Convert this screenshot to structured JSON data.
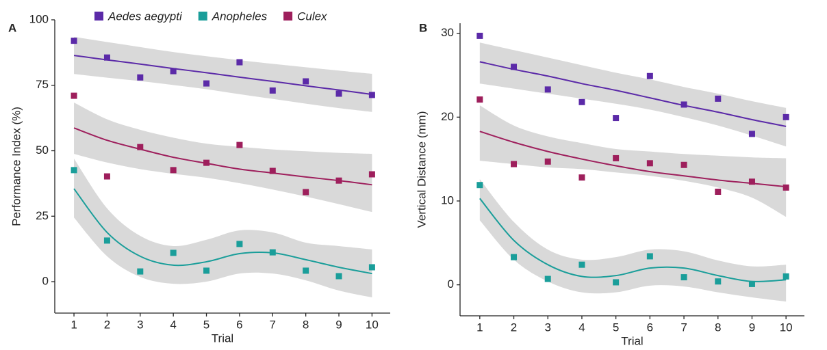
{
  "chart_data": [
    {
      "type": "scatter",
      "panel": "A",
      "xlabel": "Trial",
      "ylabel": "Performance Index (%)",
      "x": [
        1,
        2,
        3,
        4,
        5,
        6,
        7,
        8,
        9,
        10
      ],
      "xlim": [
        0.42,
        10.55
      ],
      "xticks": [
        1,
        2,
        3,
        4,
        5,
        6,
        7,
        8,
        9,
        10
      ],
      "ylim": [
        -12,
        100
      ],
      "yticks": [
        0,
        25,
        50,
        75,
        100
      ],
      "series": [
        {
          "name": "Aedes aegypti",
          "color": "#5b2aa8",
          "values": [
            92,
            85.6,
            78,
            80.4,
            75.7,
            83.8,
            73,
            76.5,
            71.8,
            71.3
          ],
          "fit": [
            86.4,
            84.7,
            83.1,
            81.4,
            79.8,
            78.1,
            76.5,
            74.8,
            73.2,
            71.5
          ],
          "band_upper": [
            93.5,
            91.5,
            89.6,
            87.7,
            86.1,
            84.6,
            83.2,
            81.9,
            80.6,
            79.4
          ],
          "band_lower": [
            79.3,
            77.9,
            76.6,
            75.1,
            73.5,
            71.6,
            69.8,
            68,
            66.3,
            64.8
          ]
        },
        {
          "name": "Anopheles",
          "color": "#1a9e9a",
          "values": [
            42.6,
            15.7,
            3.9,
            11,
            4.2,
            14.4,
            11.2,
            4.2,
            2.1,
            5.5
          ],
          "fit": [
            35.5,
            18.8,
            9.7,
            6.3,
            7.6,
            10.7,
            11,
            8.4,
            5.5,
            3.1
          ],
          "band_upper": [
            47,
            28,
            17.5,
            13.6,
            16,
            19.6,
            18.8,
            14.9,
            13.6,
            12.3
          ],
          "band_lower": [
            24.5,
            9.7,
            1.8,
            -0.8,
            0,
            3.1,
            3.1,
            0.5,
            -3.4,
            -6
          ]
        },
        {
          "name": "Culex",
          "color": "#9e1f5c",
          "values": [
            71,
            40.2,
            51.4,
            42.6,
            45.4,
            52.2,
            42.3,
            34.2,
            38.6,
            41
          ],
          "fit": [
            58.7,
            54,
            50.6,
            47.5,
            45.2,
            43,
            41.5,
            40,
            38.6,
            37
          ],
          "band_upper": [
            68.4,
            62,
            58,
            55,
            52.7,
            51.5,
            50.5,
            49.8,
            49.2,
            48.8
          ],
          "band_lower": [
            48.8,
            45.5,
            43,
            41.2,
            39.7,
            37.6,
            35.2,
            32.5,
            29.6,
            26.6
          ]
        }
      ]
    },
    {
      "type": "scatter",
      "panel": "B",
      "xlabel": "Trial",
      "ylabel": "Vertical Distance (mm)",
      "x": [
        1,
        2,
        3,
        4,
        5,
        6,
        7,
        8,
        9,
        10
      ],
      "xlim": [
        0.42,
        10.54
      ],
      "xticks": [
        1,
        2,
        3,
        4,
        5,
        6,
        7,
        8,
        9,
        10
      ],
      "ylim": [
        -3.7,
        31.2
      ],
      "yticks": [
        0,
        10,
        20,
        30
      ],
      "series": [
        {
          "color": "#5b2aa8",
          "values": [
            29.7,
            26,
            23.3,
            21.8,
            19.9,
            24.9,
            21.5,
            22.2,
            18,
            20
          ],
          "fit": [
            26.6,
            25.7,
            24.9,
            24,
            23.2,
            22.3,
            21.4,
            20.6,
            19.7,
            18.9
          ],
          "band_upper": [
            28.9,
            28,
            27.1,
            26.2,
            25.3,
            24.5,
            23.6,
            22.8,
            21.9,
            21.1
          ],
          "band_lower": [
            24,
            23.4,
            22.8,
            22.2,
            21.6,
            20.9,
            20,
            19,
            17.8,
            16.5
          ]
        },
        {
          "color": "#1a9e9a",
          "values": [
            11.9,
            3.3,
            0.7,
            2.4,
            0.3,
            3.4,
            0.9,
            0.4,
            0.1,
            1
          ],
          "fit": [
            10.3,
            5.3,
            2.4,
            1,
            1.1,
            2,
            2,
            1.1,
            0.4,
            0.6
          ],
          "band_upper": [
            12.6,
            7.5,
            4.2,
            3,
            3.3,
            4.2,
            4,
            2.9,
            2.2,
            2.4
          ],
          "band_lower": [
            7.7,
            3,
            0.4,
            -0.9,
            -0.9,
            -0.1,
            -0.2,
            -0.9,
            -1.5,
            -2
          ]
        },
        {
          "color": "#9e1f5c",
          "values": [
            22.1,
            14.4,
            14.7,
            12.8,
            15.1,
            14.5,
            14.3,
            11.1,
            12.3,
            11.6
          ],
          "fit": [
            18.3,
            17,
            15.9,
            15,
            14.2,
            13.5,
            13,
            12.5,
            12.1,
            11.7
          ],
          "band_upper": [
            21.4,
            19,
            17.7,
            16.9,
            16.2,
            15.9,
            15.6,
            15.4,
            15.2,
            15.1
          ],
          "band_lower": [
            14.8,
            14.4,
            14,
            13.8,
            13.4,
            13,
            12.4,
            11.6,
            10.4,
            8.1
          ]
        }
      ]
    }
  ]
}
